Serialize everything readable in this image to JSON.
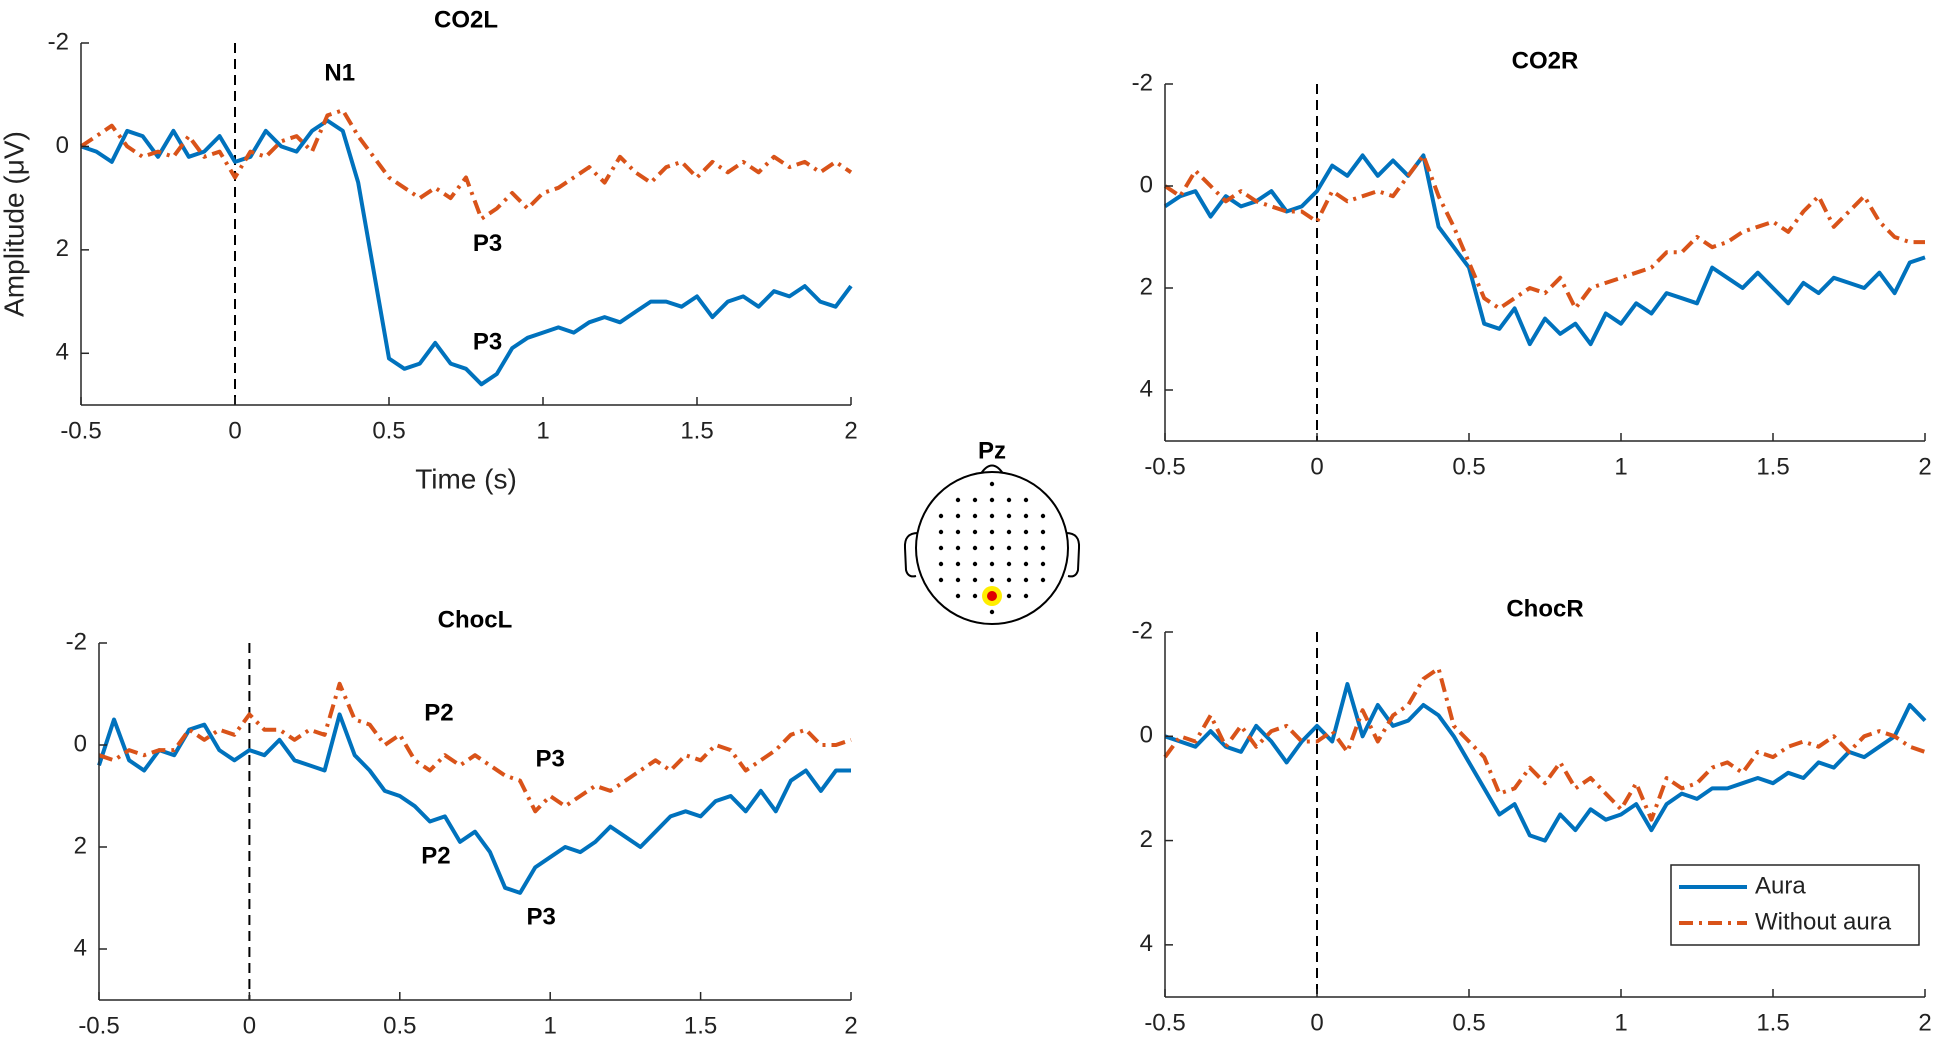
{
  "chart_data": [
    {
      "type": "line",
      "title": "CO2L",
      "xlabel": "Time (s)",
      "ylabel": "Amplitude (μV)",
      "xlim": [
        -0.5,
        2
      ],
      "xticks": [
        -0.5,
        0,
        0.5,
        1,
        1.5,
        2
      ],
      "ylim": [
        -2,
        5
      ],
      "yticks": [
        -2,
        0,
        2,
        4
      ],
      "y_reversed": true,
      "onset": 0,
      "x": [
        -0.5,
        -0.45,
        -0.4,
        -0.35,
        -0.3,
        -0.25,
        -0.2,
        -0.15,
        -0.1,
        -0.05,
        0,
        0.05,
        0.1,
        0.15,
        0.2,
        0.25,
        0.3,
        0.35,
        0.4,
        0.45,
        0.5,
        0.55,
        0.6,
        0.65,
        0.7,
        0.75,
        0.8,
        0.85,
        0.9,
        0.95,
        1,
        1.05,
        1.1,
        1.15,
        1.2,
        1.25,
        1.3,
        1.35,
        1.4,
        1.45,
        1.5,
        1.55,
        1.6,
        1.65,
        1.7,
        1.75,
        1.8,
        1.85,
        1.9,
        1.95,
        2
      ],
      "series": [
        {
          "color": "#0072bd",
          "linestyle": "solid",
          "values": [
            0,
            0.1,
            0.3,
            -0.3,
            -0.2,
            0.2,
            -0.3,
            0.2,
            0.1,
            -0.2,
            0.3,
            0.2,
            -0.3,
            0,
            0.1,
            -0.3,
            -0.5,
            -0.3,
            0.7,
            2.4,
            4.1,
            4.3,
            4.2,
            3.8,
            4.2,
            4.3,
            4.6,
            4.4,
            3.9,
            3.7,
            3.6,
            3.5,
            3.6,
            3.4,
            3.3,
            3.4,
            3.2,
            3.0,
            3.0,
            3.1,
            2.9,
            3.3,
            3.0,
            2.9,
            3.1,
            2.8,
            2.9,
            2.7,
            3.0,
            3.1,
            2.7
          ]
        },
        {
          "color": "#d95319",
          "linestyle": "dashdot",
          "values": [
            0,
            -0.2,
            -0.4,
            0,
            0.2,
            0.1,
            0.2,
            -0.2,
            0.2,
            0.1,
            0.6,
            0.1,
            0.2,
            -0.1,
            -0.2,
            0.1,
            -0.6,
            -0.7,
            -0.2,
            0.2,
            0.6,
            0.8,
            1.0,
            0.8,
            1.0,
            0.6,
            1.4,
            1.2,
            0.9,
            1.2,
            0.9,
            0.8,
            0.6,
            0.4,
            0.7,
            0.2,
            0.5,
            0.7,
            0.4,
            0.3,
            0.6,
            0.3,
            0.5,
            0.3,
            0.5,
            0.2,
            0.4,
            0.3,
            0.5,
            0.3,
            0.5
          ]
        }
      ],
      "annotations": [
        {
          "text": "N1",
          "x": 0.34,
          "y": -1.4
        },
        {
          "text": "P3",
          "x": 0.82,
          "y": 1.9
        },
        {
          "text": "P3",
          "x": 0.82,
          "y": 3.8
        }
      ]
    },
    {
      "type": "line",
      "title": "CO2R",
      "xlim": [
        -0.5,
        2
      ],
      "xticks": [
        -0.5,
        0,
        0.5,
        1,
        1.5,
        2
      ],
      "ylim": [
        -2,
        5
      ],
      "yticks": [
        -2,
        0,
        2,
        4
      ],
      "y_reversed": true,
      "onset": 0,
      "x": [
        -0.5,
        -0.45,
        -0.4,
        -0.35,
        -0.3,
        -0.25,
        -0.2,
        -0.15,
        -0.1,
        -0.05,
        0,
        0.05,
        0.1,
        0.15,
        0.2,
        0.25,
        0.3,
        0.35,
        0.4,
        0.45,
        0.5,
        0.55,
        0.6,
        0.65,
        0.7,
        0.75,
        0.8,
        0.85,
        0.9,
        0.95,
        1,
        1.05,
        1.1,
        1.15,
        1.2,
        1.25,
        1.3,
        1.35,
        1.4,
        1.45,
        1.5,
        1.55,
        1.6,
        1.65,
        1.7,
        1.75,
        1.8,
        1.85,
        1.9,
        1.95,
        2
      ],
      "series": [
        {
          "color": "#0072bd",
          "linestyle": "solid",
          "values": [
            0.4,
            0.2,
            0.1,
            0.6,
            0.2,
            0.4,
            0.3,
            0.1,
            0.5,
            0.4,
            0.1,
            -0.4,
            -0.2,
            -0.6,
            -0.2,
            -0.5,
            -0.2,
            -0.6,
            0.8,
            1.2,
            1.6,
            2.7,
            2.8,
            2.4,
            3.1,
            2.6,
            2.9,
            2.7,
            3.1,
            2.5,
            2.7,
            2.3,
            2.5,
            2.1,
            2.2,
            2.3,
            1.6,
            1.8,
            2.0,
            1.7,
            2.0,
            2.3,
            1.9,
            2.1,
            1.8,
            1.9,
            2.0,
            1.7,
            2.1,
            1.5,
            1.4
          ]
        },
        {
          "color": "#d95319",
          "linestyle": "dashdot",
          "values": [
            0,
            0.2,
            -0.3,
            0,
            0.3,
            0.1,
            0.3,
            0.4,
            0.5,
            0.5,
            0.7,
            0.1,
            0.3,
            0.2,
            0.1,
            0.2,
            -0.2,
            -0.6,
            0.2,
            0.8,
            1.5,
            2.2,
            2.4,
            2.2,
            2.0,
            2.1,
            1.8,
            2.4,
            2.0,
            1.9,
            1.8,
            1.7,
            1.6,
            1.3,
            1.3,
            1.0,
            1.2,
            1.1,
            0.9,
            0.8,
            0.7,
            0.9,
            0.5,
            0.2,
            0.8,
            0.5,
            0.2,
            0.7,
            1.0,
            1.1,
            1.1
          ]
        }
      ]
    },
    {
      "type": "line",
      "title": "ChocL",
      "xlim": [
        -0.5,
        2
      ],
      "xticks": [
        -0.5,
        0,
        0.5,
        1,
        1.5,
        2
      ],
      "ylim": [
        -2,
        5
      ],
      "yticks": [
        -2,
        0,
        2,
        4
      ],
      "y_reversed": true,
      "onset": 0,
      "x": [
        -0.5,
        -0.45,
        -0.4,
        -0.35,
        -0.3,
        -0.25,
        -0.2,
        -0.15,
        -0.1,
        -0.05,
        0,
        0.05,
        0.1,
        0.15,
        0.2,
        0.25,
        0.3,
        0.35,
        0.4,
        0.45,
        0.5,
        0.55,
        0.6,
        0.65,
        0.7,
        0.75,
        0.8,
        0.85,
        0.9,
        0.95,
        1,
        1.05,
        1.1,
        1.15,
        1.2,
        1.25,
        1.3,
        1.35,
        1.4,
        1.45,
        1.5,
        1.55,
        1.6,
        1.65,
        1.7,
        1.75,
        1.8,
        1.85,
        1.9,
        1.95,
        2
      ],
      "series": [
        {
          "color": "#0072bd",
          "linestyle": "solid",
          "values": [
            0.4,
            -0.5,
            0.3,
            0.5,
            0.1,
            0.2,
            -0.3,
            -0.4,
            0.1,
            0.3,
            0.1,
            0.2,
            -0.1,
            0.3,
            0.4,
            0.5,
            -0.6,
            0.2,
            0.5,
            0.9,
            1.0,
            1.2,
            1.5,
            1.4,
            1.9,
            1.7,
            2.1,
            2.8,
            2.9,
            2.4,
            2.2,
            2.0,
            2.1,
            1.9,
            1.6,
            1.8,
            2.0,
            1.7,
            1.4,
            1.3,
            1.4,
            1.1,
            1.0,
            1.3,
            0.9,
            1.3,
            0.7,
            0.5,
            0.9,
            0.5,
            0.5
          ]
        },
        {
          "color": "#d95319",
          "linestyle": "dashdot",
          "values": [
            0.2,
            0.3,
            0.1,
            0.2,
            0.1,
            0.1,
            -0.3,
            -0.1,
            -0.3,
            -0.2,
            -0.6,
            -0.3,
            -0.3,
            -0.1,
            -0.3,
            -0.2,
            -1.2,
            -0.5,
            -0.4,
            0,
            -0.2,
            0.3,
            0.5,
            0.2,
            0.4,
            0.2,
            0.4,
            0.6,
            0.7,
            1.3,
            1.0,
            1.2,
            1.0,
            0.8,
            0.9,
            0.7,
            0.5,
            0.3,
            0.5,
            0.2,
            0.3,
            0,
            0.1,
            0.5,
            0.3,
            0.1,
            -0.2,
            -0.3,
            0,
            0,
            -0.1
          ]
        }
      ],
      "annotations": [
        {
          "text": "P2",
          "x": 0.63,
          "y": -0.6
        },
        {
          "text": "P3",
          "x": 1.0,
          "y": 0.3
        },
        {
          "text": "P2",
          "x": 0.62,
          "y": 2.2
        },
        {
          "text": "P3",
          "x": 0.97,
          "y": 3.4
        }
      ]
    },
    {
      "type": "line",
      "title": "ChocR",
      "xlim": [
        -0.5,
        2
      ],
      "xticks": [
        -0.5,
        0,
        0.5,
        1,
        1.5,
        2
      ],
      "ylim": [
        -2,
        5
      ],
      "yticks": [
        -2,
        0,
        2,
        4
      ],
      "y_reversed": true,
      "onset": 0,
      "legend": "lower right",
      "x": [
        -0.5,
        -0.45,
        -0.4,
        -0.35,
        -0.3,
        -0.25,
        -0.2,
        -0.15,
        -0.1,
        -0.05,
        0,
        0.05,
        0.1,
        0.15,
        0.2,
        0.25,
        0.3,
        0.35,
        0.4,
        0.45,
        0.5,
        0.55,
        0.6,
        0.65,
        0.7,
        0.75,
        0.8,
        0.85,
        0.9,
        0.95,
        1,
        1.05,
        1.1,
        1.15,
        1.2,
        1.25,
        1.3,
        1.35,
        1.4,
        1.45,
        1.5,
        1.55,
        1.6,
        1.65,
        1.7,
        1.75,
        1.8,
        1.85,
        1.9,
        1.95,
        2
      ],
      "series": [
        {
          "name": "Aura",
          "color": "#0072bd",
          "linestyle": "solid",
          "values": [
            0,
            0.1,
            0.2,
            -0.1,
            0.2,
            0.3,
            -0.2,
            0.1,
            0.5,
            0.1,
            -0.2,
            0.1,
            -1.0,
            0,
            -0.6,
            -0.2,
            -0.3,
            -0.6,
            -0.4,
            0,
            0.5,
            1.0,
            1.5,
            1.3,
            1.9,
            2.0,
            1.5,
            1.8,
            1.4,
            1.6,
            1.5,
            1.3,
            1.8,
            1.3,
            1.1,
            1.2,
            1.0,
            1.0,
            0.9,
            0.8,
            0.9,
            0.7,
            0.8,
            0.5,
            0.6,
            0.3,
            0.4,
            0.2,
            0,
            -0.6,
            -0.3
          ]
        },
        {
          "name": "Without aura",
          "color": "#d95319",
          "linestyle": "dashdot",
          "values": [
            0.4,
            0,
            0.1,
            -0.4,
            0.2,
            -0.2,
            0.2,
            -0.1,
            -0.2,
            0.1,
            0.1,
            -0.1,
            0.3,
            -0.5,
            0.1,
            -0.4,
            -0.6,
            -1.1,
            -1.3,
            -0.2,
            0.1,
            0.4,
            1.1,
            1.0,
            0.6,
            0.9,
            0.5,
            1.0,
            0.8,
            1.1,
            1.4,
            0.9,
            1.6,
            0.8,
            1.0,
            0.9,
            0.6,
            0.5,
            0.7,
            0.3,
            0.4,
            0.2,
            0.1,
            0.2,
            0,
            0.3,
            0,
            -0.1,
            0,
            0.2,
            0.3
          ]
        }
      ]
    }
  ],
  "electrode_map": {
    "label": "Pz"
  }
}
